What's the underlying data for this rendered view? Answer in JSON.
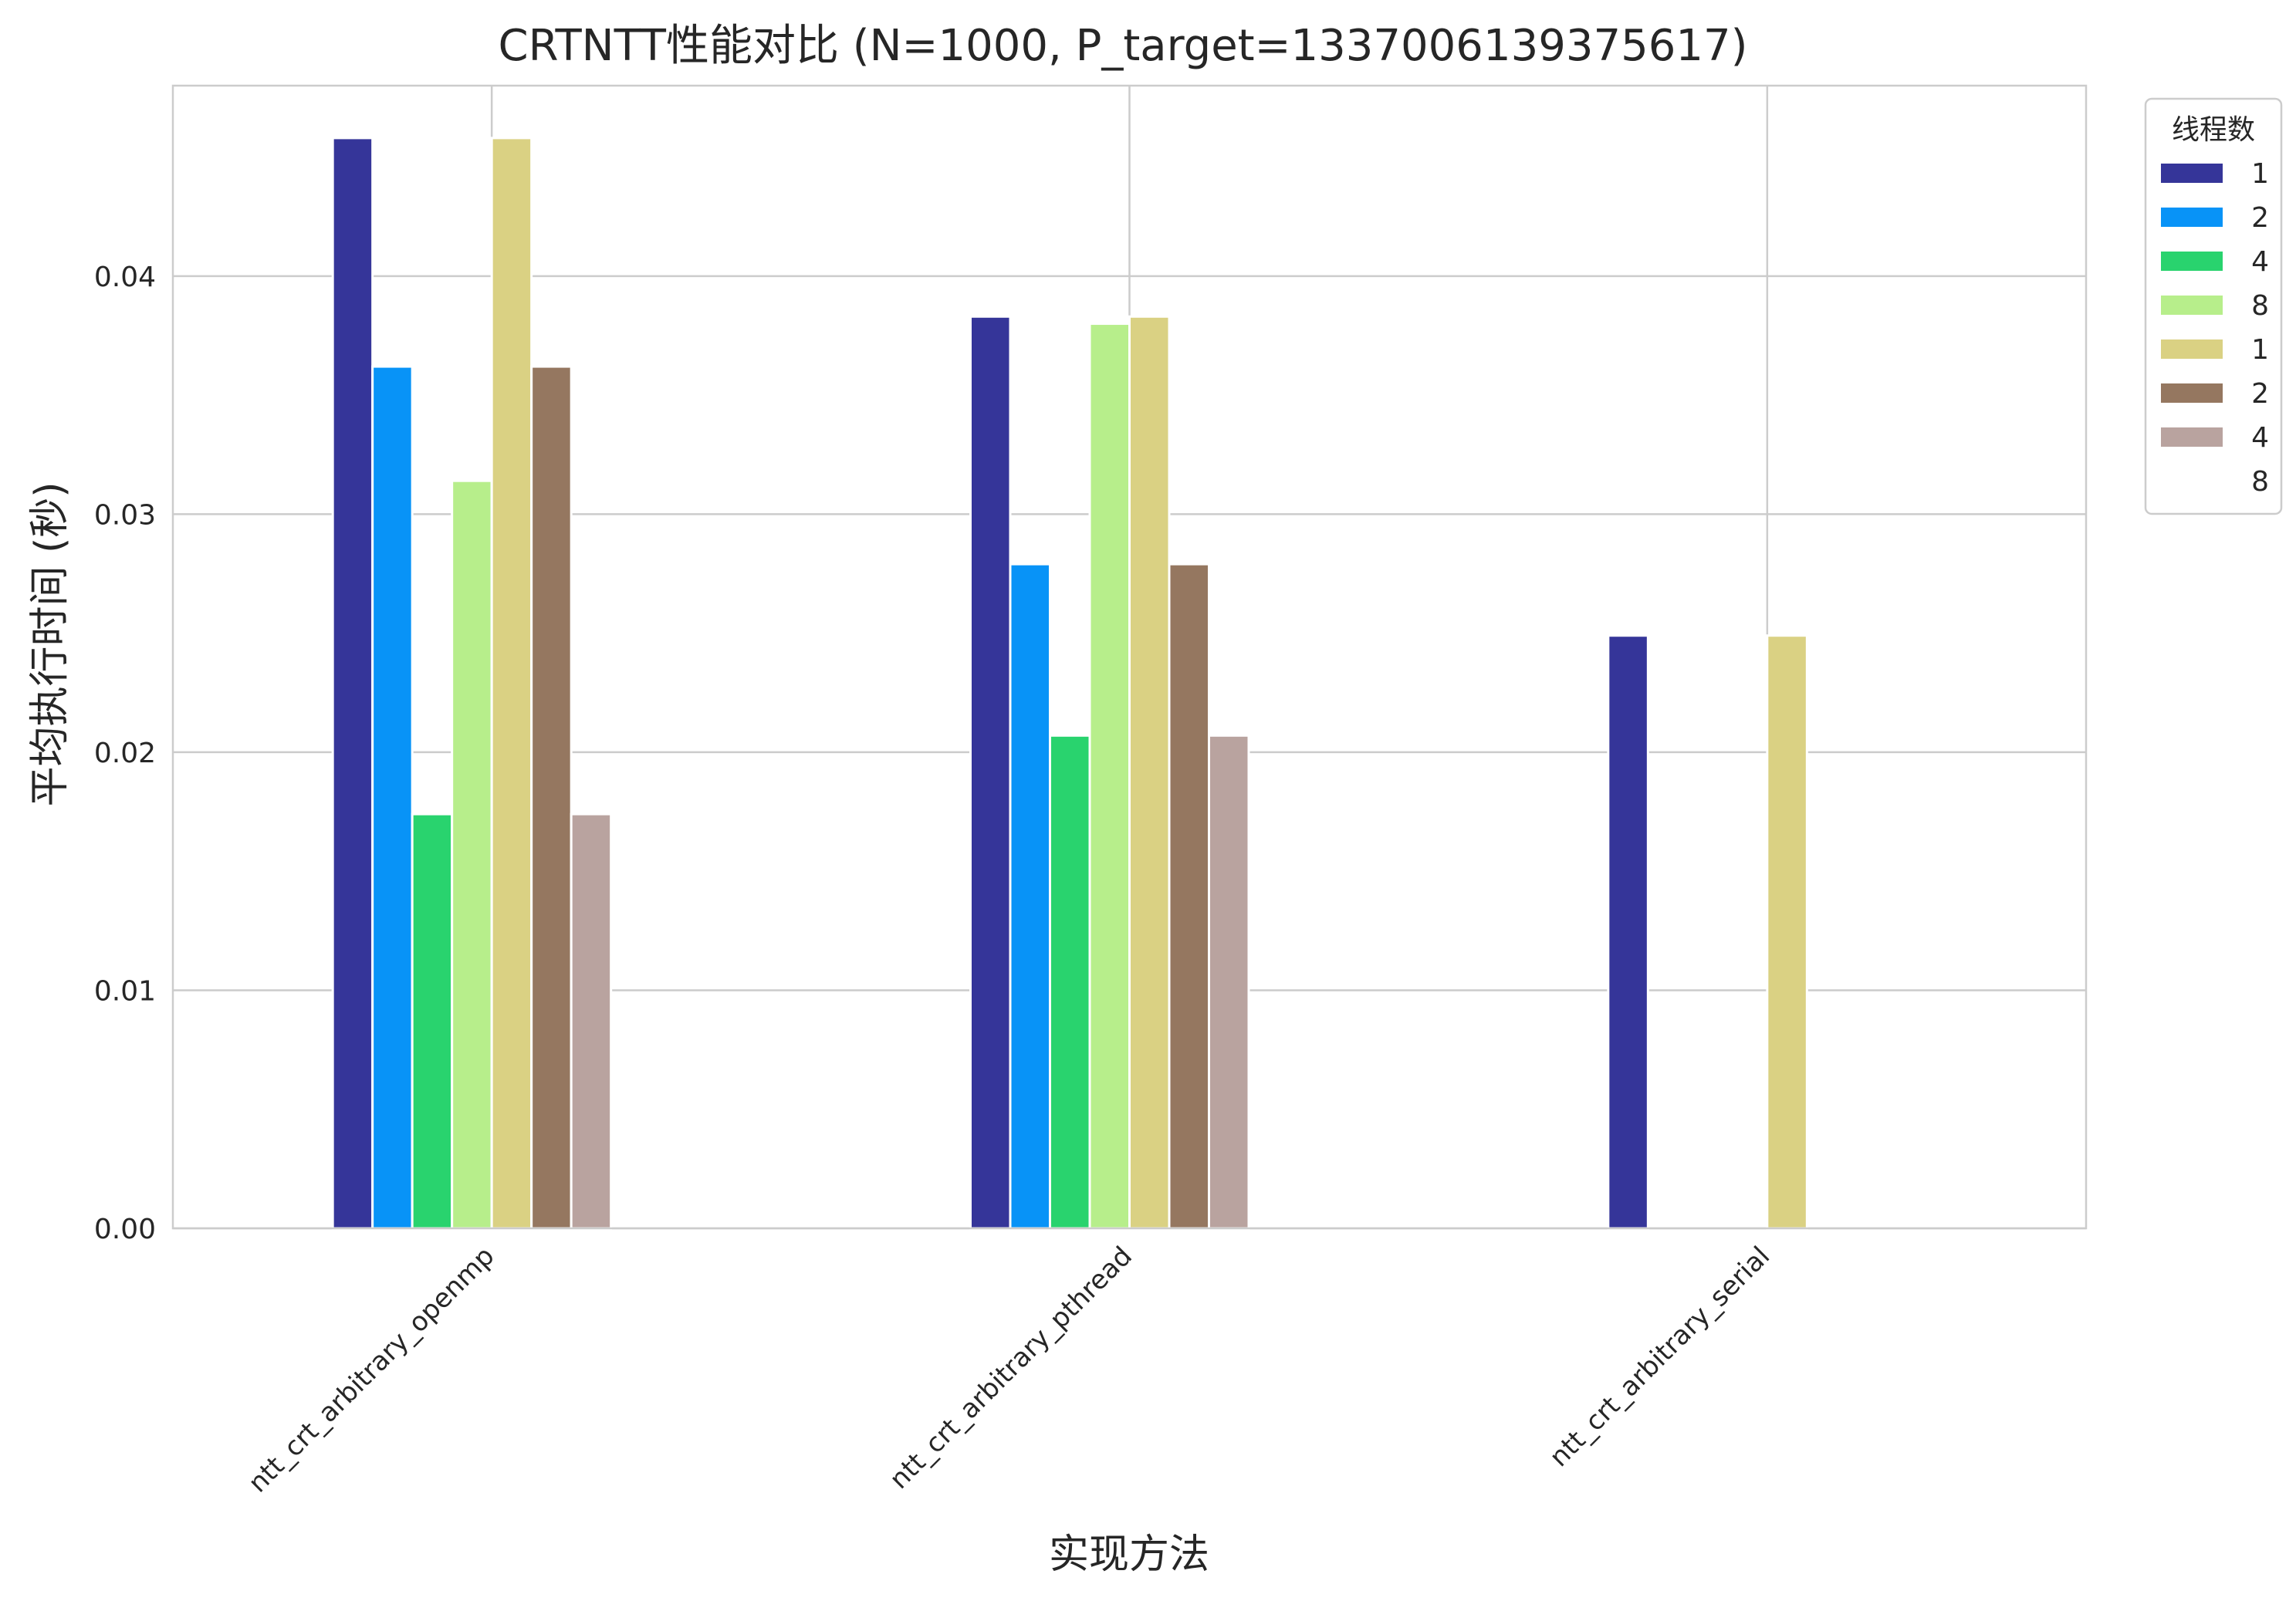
{
  "chart_data": {
    "type": "bar",
    "title": "CRTNTT性能对比 (N=1000, P_target=1337006139375617)",
    "xlabel": "实现方法",
    "ylabel": "平均执行时间 (秒)",
    "categories": [
      "ntt_crt_arbitrary_openmp",
      "ntt_crt_arbitrary_pthread",
      "ntt_crt_arbitrary_serial"
    ],
    "ylim": [
      0,
      0.048
    ],
    "yticks": [
      0.0,
      0.01,
      0.02,
      0.03,
      0.04
    ],
    "ytick_labels": [
      "0.00",
      "0.01",
      "0.02",
      "0.03",
      "0.04"
    ],
    "grid": true,
    "legend": {
      "title": "线程数",
      "position": "top-right outside"
    },
    "series": [
      {
        "name": "1",
        "color": "#353599",
        "values": [
          0.0458,
          0.0383,
          0.0249
        ]
      },
      {
        "name": "2",
        "color": "#0893f7",
        "values": [
          0.0362,
          0.0279,
          null
        ]
      },
      {
        "name": "4",
        "color": "#29d36e",
        "values": [
          0.0174,
          0.0207,
          null
        ]
      },
      {
        "name": "8",
        "color": "#b7ee8b",
        "values": [
          0.0314,
          0.038,
          null
        ]
      },
      {
        "name": "1",
        "color": "#dad183",
        "values": [
          0.0458,
          0.0383,
          0.0249
        ]
      },
      {
        "name": "2",
        "color": "#957760",
        "values": [
          0.0362,
          0.0279,
          null
        ]
      },
      {
        "name": "4",
        "color": "#b9a39f",
        "values": [
          0.0174,
          0.0207,
          null
        ]
      },
      {
        "name": "8",
        "color": "#ffffff",
        "values": [
          null,
          null,
          null
        ]
      }
    ]
  }
}
